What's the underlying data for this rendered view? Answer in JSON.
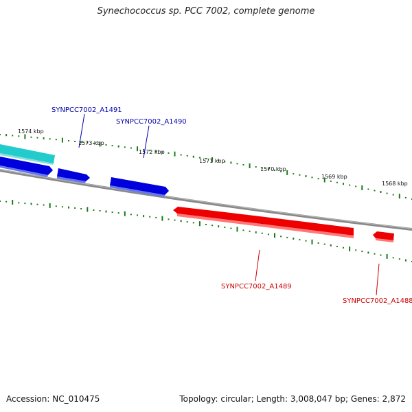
{
  "title": "Synechococcus sp. PCC 7002, complete genome",
  "accession": "Accession: NC_010475",
  "stats": "Topology: circular; Length: 3,008,047 bp; Genes: 2,872",
  "colors": {
    "forward_gene": "#0000dd",
    "reverse_gene": "#ee0000",
    "other_gene": "#22bbbb",
    "backbone": "#888888",
    "ticks": "#1a7a1a",
    "forward_label": "#0000aa",
    "reverse_label": "#cc0000"
  },
  "ticks": [
    {
      "label": "1574 kbp"
    },
    {
      "label": "1573 kbp"
    },
    {
      "label": "1572 kbp"
    },
    {
      "label": "1571 kbp"
    },
    {
      "label": "1570 kbp"
    },
    {
      "label": "1569 kbp"
    },
    {
      "label": "1568 kbp"
    }
  ],
  "genes": [
    {
      "name": "SYNPCC7002_A1491",
      "strand": "forward"
    },
    {
      "name": "SYNPCC7002_A1490",
      "strand": "forward"
    },
    {
      "name": "SYNPCC7002_A1489",
      "strand": "reverse"
    },
    {
      "name": "SYNPCC7002_A1488",
      "strand": "reverse"
    }
  ]
}
